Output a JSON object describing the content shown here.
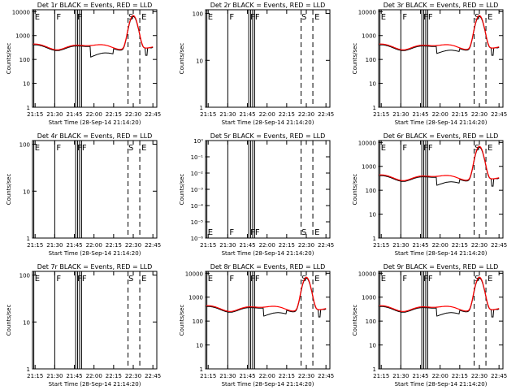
{
  "chart_data": [
    {
      "type": "line",
      "title": "Det 1r BLACK = Events, RED = LLD",
      "ylabel": "Counts/sec",
      "xlabel": "Start Time (28-Sep-14 21:14:20)",
      "y_ticks": [
        "1",
        "10",
        "100",
        "1000",
        "10000"
      ],
      "ylim": [
        1,
        12000
      ],
      "has_data": true,
      "flare_peak": 6500,
      "dip_depth": 0.35,
      "markers": [
        "E",
        "F",
        "F",
        "S",
        "E"
      ]
    },
    {
      "type": "line",
      "title": "Det 2r BLACK = Events, RED = LLD",
      "ylabel": "Counts/sec",
      "xlabel": "Start Time (28-Sep-14 21:14:20)",
      "y_ticks": [
        "1",
        "10",
        "100"
      ],
      "ylim": [
        1,
        120
      ],
      "has_data": false,
      "markers": [
        "E",
        "F",
        "FF",
        "S",
        "E"
      ]
    },
    {
      "type": "line",
      "title": "Det 3r BLACK = Events, RED = LLD",
      "ylabel": "Counts/sec",
      "xlabel": "Start Time (28-Sep-14 21:14:20)",
      "y_ticks": [
        "1",
        "10",
        "100",
        "1000",
        "10000"
      ],
      "ylim": [
        1,
        12000
      ],
      "has_data": true,
      "flare_peak": 6500,
      "dip_depth": 0.5,
      "markers": [
        "E",
        "F",
        "FF",
        "S",
        "E"
      ]
    },
    {
      "type": "line",
      "title": "Det 4r BLACK = Events, RED = LLD",
      "ylabel": "Counts/sec",
      "xlabel": "Start Time (28-Sep-14 21:14:20)",
      "y_ticks": [
        "1",
        "10",
        "100"
      ],
      "ylim": [
        1,
        120
      ],
      "has_data": false,
      "markers": [
        "E",
        "F",
        "FF",
        "S",
        "E"
      ]
    },
    {
      "type": "line",
      "title": "Det 5r BLACK = Events, RED = LLD",
      "ylabel": "Counts/sec",
      "xlabel": "Start Time (28-Sep-14 21:14:20)",
      "y_ticks": [
        "10⁰",
        "10⁻¹",
        "10⁻²",
        "10⁻³",
        "10⁻⁴",
        "10⁻⁵",
        "10⁻⁶"
      ],
      "ylim": [
        1e-06,
        1
      ],
      "has_data": false,
      "bottom_markers": true,
      "markers": [
        "E",
        "F",
        "FF",
        "S",
        "E"
      ]
    },
    {
      "type": "line",
      "title": "Det 6r BLACK = Events, RED = LLD",
      "ylabel": "Counts/sec",
      "xlabel": "Start Time (28-Sep-14 21:14:20)",
      "y_ticks": [
        "1",
        "10",
        "100",
        "1000",
        "10000"
      ],
      "ylim": [
        1,
        12000
      ],
      "has_data": true,
      "flare_peak": 6500,
      "dip_depth": 0.45,
      "markers": [
        "E",
        "F",
        "FF",
        "S",
        "E"
      ]
    },
    {
      "type": "line",
      "title": "Det 7r BLACK = Events, RED = LLD",
      "ylabel": "Counts/sec",
      "xlabel": "Start Time (28-Sep-14 21:14:20)",
      "y_ticks": [
        "1",
        "10",
        "100"
      ],
      "ylim": [
        1,
        120
      ],
      "has_data": false,
      "markers": [
        "E",
        "F",
        "FF",
        "S",
        "E"
      ]
    },
    {
      "type": "line",
      "title": "Det 8r BLACK = Events, RED = LLD",
      "ylabel": "Counts/sec",
      "xlabel": "Start Time (28-Sep-14 21:14:20)",
      "y_ticks": [
        "1",
        "10",
        "100",
        "1000",
        "10000"
      ],
      "ylim": [
        1,
        12000
      ],
      "has_data": true,
      "flare_peak": 6500,
      "dip_depth": 0.45,
      "markers": [
        "E",
        "F",
        "FF",
        "S",
        "E"
      ]
    },
    {
      "type": "line",
      "title": "Det 9r BLACK = Events, RED = LLD",
      "ylabel": "Counts/sec",
      "xlabel": "Start Time (28-Sep-14 21:14:20)",
      "y_ticks": [
        "1",
        "10",
        "100",
        "1000",
        "10000"
      ],
      "ylim": [
        1,
        12000
      ],
      "has_data": true,
      "flare_peak": 6500,
      "dip_depth": 0.45,
      "markers": [
        "E",
        "F",
        "FF",
        "S",
        "E"
      ]
    }
  ],
  "x_ticks": [
    "21:15",
    "21:30",
    "21:45",
    "22:00",
    "22:15",
    "22:30",
    "22:45"
  ],
  "colors": {
    "events": "#000000",
    "lld": "#ff0000",
    "axis": "#000000"
  }
}
